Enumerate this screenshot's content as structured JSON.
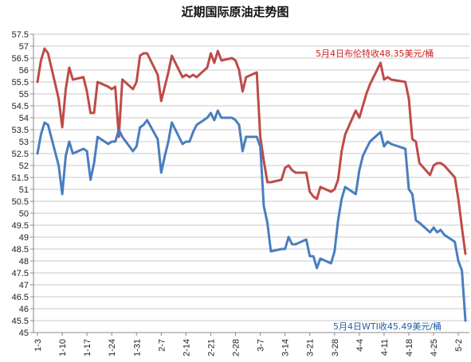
{
  "chart_data": {
    "type": "line",
    "title": "近期国际原油走势图",
    "xlabel": "",
    "ylabel": "",
    "ylim": [
      45,
      57.5
    ],
    "ytick_step": 0.5,
    "yticks": [
      "45",
      "45.5",
      "46",
      "46.5",
      "47",
      "47.5",
      "48",
      "48.5",
      "49",
      "49.5",
      "50",
      "50.5",
      "51",
      "51.5",
      "52",
      "52.5",
      "53",
      "53.5",
      "54",
      "54.5",
      "55",
      "55.5",
      "56",
      "56.5",
      "57",
      "57.5"
    ],
    "xtick_labels": [
      "1-3",
      "1-10",
      "1-17",
      "1-24",
      "1-31",
      "2-7",
      "2-14",
      "2-21",
      "2-28",
      "3-7",
      "3-14",
      "3-21",
      "3-28",
      "4-4",
      "4-11",
      "4-18",
      "4-25",
      "5-2"
    ],
    "x_start": "1-3",
    "x_end": "5-4",
    "grid": "horizontal",
    "series": [
      {
        "color": "#be4b48",
        "dates": [
          "1-3",
          "1-4",
          "1-5",
          "1-6",
          "1-9",
          "1-10",
          "1-11",
          "1-12",
          "1-13",
          "1-16",
          "1-17",
          "1-18",
          "1-19",
          "1-20",
          "1-23",
          "1-24",
          "1-25",
          "1-26",
          "1-27",
          "1-30",
          "1-31",
          "2-1",
          "2-2",
          "2-3",
          "2-6",
          "2-7",
          "2-8",
          "2-9",
          "2-10",
          "2-13",
          "2-14",
          "2-15",
          "2-16",
          "2-17",
          "2-20",
          "2-21",
          "2-22",
          "2-23",
          "2-24",
          "2-27",
          "2-28",
          "3-1",
          "3-2",
          "3-3",
          "3-6",
          "3-7",
          "3-8",
          "3-9",
          "3-10",
          "3-13",
          "3-14",
          "3-15",
          "3-16",
          "3-17",
          "3-20",
          "3-21",
          "3-22",
          "3-23",
          "3-24",
          "3-27",
          "3-28",
          "3-29",
          "3-30",
          "3-31",
          "4-3",
          "4-4",
          "4-5",
          "4-6",
          "4-7",
          "4-10",
          "4-11",
          "4-12",
          "4-13",
          "4-17",
          "4-18",
          "4-19",
          "4-20",
          "4-21",
          "4-24",
          "4-25",
          "4-26",
          "4-27",
          "4-28",
          "5-1",
          "5-2",
          "5-3",
          "5-4"
        ],
        "values": [
          55.5,
          56.4,
          56.9,
          56.7,
          54.8,
          53.6,
          55.2,
          56.1,
          55.6,
          55.7,
          55.1,
          54.2,
          54.2,
          55.5,
          55.3,
          55.2,
          55.3,
          53.2,
          55.6,
          55.2,
          55.5,
          56.6,
          56.7,
          56.7,
          55.8,
          54.7,
          55.3,
          55.9,
          56.6,
          55.7,
          55.8,
          55.7,
          55.8,
          55.7,
          56.1,
          56.7,
          56.3,
          56.8,
          56.4,
          56.5,
          56.4,
          56.0,
          55.1,
          55.7,
          55.9,
          53.2,
          52.2,
          51.3,
          51.3,
          51.4,
          51.9,
          52.0,
          51.8,
          51.7,
          51.7,
          50.9,
          50.7,
          50.6,
          51.1,
          50.9,
          51.0,
          51.4,
          52.6,
          53.3,
          54.3,
          54.0,
          54.5,
          55.0,
          55.4,
          56.3,
          55.6,
          55.7,
          55.6,
          55.5,
          54.8,
          53.1,
          53.0,
          52.1,
          51.6,
          52.0,
          52.1,
          52.1,
          52.0,
          51.5,
          50.6,
          49.4,
          48.3
        ]
      },
      {
        "color": "#4a7dbf",
        "dates": [
          "1-3",
          "1-4",
          "1-5",
          "1-6",
          "1-9",
          "1-10",
          "1-11",
          "1-12",
          "1-13",
          "1-16",
          "1-17",
          "1-18",
          "1-19",
          "1-20",
          "1-23",
          "1-24",
          "1-25",
          "1-26",
          "1-27",
          "1-30",
          "1-31",
          "2-1",
          "2-2",
          "2-3",
          "2-6",
          "2-7",
          "2-8",
          "2-9",
          "2-10",
          "2-13",
          "2-14",
          "2-15",
          "2-16",
          "2-17",
          "2-20",
          "2-21",
          "2-22",
          "2-23",
          "2-24",
          "2-27",
          "2-28",
          "3-1",
          "3-2",
          "3-3",
          "3-6",
          "3-7",
          "3-8",
          "3-9",
          "3-10",
          "3-13",
          "3-14",
          "3-15",
          "3-16",
          "3-17",
          "3-20",
          "3-21",
          "3-22",
          "3-23",
          "3-24",
          "3-27",
          "3-28",
          "3-29",
          "3-30",
          "3-31",
          "4-3",
          "4-4",
          "4-5",
          "4-6",
          "4-7",
          "4-10",
          "4-11",
          "4-12",
          "4-13",
          "4-17",
          "4-18",
          "4-19",
          "4-20",
          "4-21",
          "4-24",
          "4-25",
          "4-26",
          "4-27",
          "4-28",
          "5-1",
          "5-2",
          "5-3",
          "5-4"
        ],
        "values": [
          52.5,
          53.3,
          53.8,
          53.7,
          52.0,
          50.8,
          52.4,
          53.0,
          52.5,
          52.7,
          52.6,
          51.4,
          52.1,
          53.2,
          52.9,
          53.0,
          53.0,
          53.5,
          53.2,
          52.6,
          52.8,
          53.6,
          53.7,
          53.9,
          53.1,
          51.7,
          52.4,
          53.0,
          53.8,
          52.9,
          53.0,
          53.0,
          53.4,
          53.7,
          54.0,
          54.2,
          53.9,
          54.3,
          54.0,
          54.0,
          53.9,
          53.7,
          52.6,
          53.2,
          53.2,
          52.8,
          50.3,
          49.6,
          48.4,
          48.5,
          48.5,
          49.0,
          48.7,
          48.7,
          48.9,
          48.2,
          48.2,
          47.7,
          48.1,
          47.9,
          48.4,
          49.7,
          50.6,
          51.1,
          50.8,
          51.8,
          52.4,
          52.7,
          53.0,
          53.4,
          52.8,
          53.0,
          52.9,
          52.7,
          51.0,
          50.8,
          49.7,
          49.6,
          49.2,
          49.4,
          49.2,
          49.3,
          49.1,
          48.8,
          48.0,
          47.6,
          45.5
        ]
      }
    ],
    "annotations": [
      {
        "text": "5月4日布伦特收48.35美元/桶",
        "color": "#cc2020"
      },
      {
        "text": "5月4日WTI收45.49美元/桶",
        "color": "#1f5fa8"
      }
    ]
  }
}
